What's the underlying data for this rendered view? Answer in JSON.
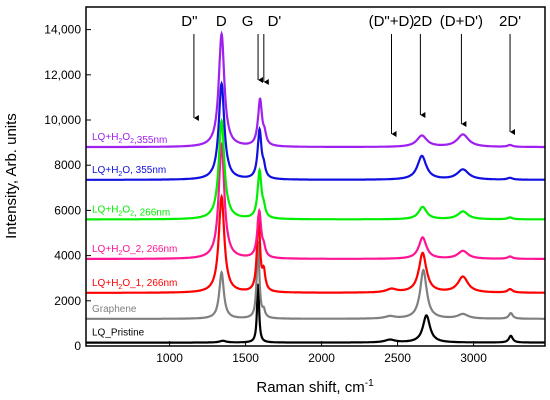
{
  "chart_data": {
    "type": "line",
    "xlabel": "Raman shift, cm",
    "xlabel_superscript": "-1",
    "ylabel": "Intensity, Arb. units",
    "xlim": [
      450,
      3470
    ],
    "ylim": [
      0,
      15000
    ],
    "x_ticks": [
      1000,
      1500,
      2000,
      2500,
      3000
    ],
    "y_ticks": [
      0,
      2000,
      4000,
      6000,
      8000,
      10000,
      12000,
      14000
    ],
    "x_tick_labels": [
      "1000",
      "1500",
      "2000",
      "2500",
      "3000"
    ],
    "y_tick_labels": [
      "0",
      "2000",
      "4000",
      "6000",
      "8000",
      "10,000",
      "12,000",
      "14,000"
    ],
    "grid": false,
    "legend": "inline labels above each curve",
    "series": [
      {
        "name": "LQ_Pristine",
        "color": "#000000",
        "baseline": 150,
        "peaks": [
          {
            "x": 1350,
            "h": 80,
            "w": 25
          },
          {
            "x": 1582,
            "h": 2600,
            "w": 8
          },
          {
            "x": 2450,
            "h": 120,
            "w": 40
          },
          {
            "x": 2690,
            "h": 1200,
            "w": 28
          },
          {
            "x": 3245,
            "h": 300,
            "w": 15
          }
        ]
      },
      {
        "name": "Graphene",
        "color": "#808080",
        "baseline": 1200,
        "peaks": [
          {
            "x": 1342,
            "h": 2050,
            "w": 18
          },
          {
            "x": 1582,
            "h": 3400,
            "w": 10
          },
          {
            "x": 1620,
            "h": 300,
            "w": 10
          },
          {
            "x": 2450,
            "h": 100,
            "w": 40
          },
          {
            "x": 2670,
            "h": 2150,
            "w": 26
          },
          {
            "x": 2930,
            "h": 200,
            "w": 40
          },
          {
            "x": 3245,
            "h": 250,
            "w": 15
          }
        ]
      },
      {
        "name": "LQ+H2O_1, 266nm",
        "color": "#ff0000",
        "baseline": 2350,
        "peaks": [
          {
            "x": 1342,
            "h": 4250,
            "w": 22
          },
          {
            "x": 1585,
            "h": 3300,
            "w": 12
          },
          {
            "x": 1620,
            "h": 800,
            "w": 12
          },
          {
            "x": 2460,
            "h": 150,
            "w": 40
          },
          {
            "x": 2665,
            "h": 1750,
            "w": 30
          },
          {
            "x": 2930,
            "h": 700,
            "w": 40
          },
          {
            "x": 3240,
            "h": 150,
            "w": 20
          }
        ]
      },
      {
        "name": "LQ+H2O_2, 266nm",
        "color": "#ff1493",
        "baseline": 3850,
        "peaks": [
          {
            "x": 1342,
            "h": 5050,
            "w": 22
          },
          {
            "x": 1590,
            "h": 2050,
            "w": 15
          },
          {
            "x": 1620,
            "h": 350,
            "w": 12
          },
          {
            "x": 2665,
            "h": 950,
            "w": 30
          },
          {
            "x": 2930,
            "h": 350,
            "w": 40
          },
          {
            "x": 3240,
            "h": 100,
            "w": 20
          }
        ]
      },
      {
        "name": "LQ+H2O2, 266nm",
        "color": "#00ee00",
        "baseline": 5600,
        "peaks": [
          {
            "x": 1342,
            "h": 4350,
            "w": 22
          },
          {
            "x": 1592,
            "h": 2100,
            "w": 15
          },
          {
            "x": 1620,
            "h": 350,
            "w": 12
          },
          {
            "x": 2665,
            "h": 550,
            "w": 32
          },
          {
            "x": 2930,
            "h": 350,
            "w": 40
          },
          {
            "x": 3240,
            "h": 80,
            "w": 20
          }
        ]
      },
      {
        "name": "LQ+H2O, 355nm",
        "color": "#1010e0",
        "baseline": 7350,
        "peaks": [
          {
            "x": 1342,
            "h": 4250,
            "w": 22
          },
          {
            "x": 1592,
            "h": 2150,
            "w": 15
          },
          {
            "x": 1620,
            "h": 400,
            "w": 12
          },
          {
            "x": 2660,
            "h": 1050,
            "w": 35
          },
          {
            "x": 2930,
            "h": 450,
            "w": 45
          },
          {
            "x": 3240,
            "h": 80,
            "w": 20
          }
        ]
      },
      {
        "name": "LQ+H2O2,355nm",
        "color": "#a020f0",
        "baseline": 8800,
        "peaks": [
          {
            "x": 1342,
            "h": 5000,
            "w": 22
          },
          {
            "x": 1595,
            "h": 2050,
            "w": 16
          },
          {
            "x": 1625,
            "h": 400,
            "w": 12
          },
          {
            "x": 2660,
            "h": 500,
            "w": 40
          },
          {
            "x": 2930,
            "h": 550,
            "w": 45
          },
          {
            "x": 3240,
            "h": 80,
            "w": 20
          }
        ]
      }
    ],
    "annotations": [
      {
        "label": "D\"",
        "x": 1160,
        "text_x": 1130
      },
      {
        "label": "D",
        "x": 1340,
        "text_x": 1340
      },
      {
        "label": "G",
        "x": 1582,
        "text_x": 1565
      },
      {
        "label": "D'",
        "x": 1620,
        "text_x": 1625
      },
      {
        "label": "(D\"+D)",
        "x": 2460,
        "text_x": 2460
      },
      {
        "label": "2D",
        "x": 2650,
        "text_x": 2665
      },
      {
        "label": "(D+D')",
        "x": 2920,
        "text_x": 2920
      },
      {
        "label": "2D'",
        "x": 3240,
        "text_x": 3240
      }
    ]
  }
}
